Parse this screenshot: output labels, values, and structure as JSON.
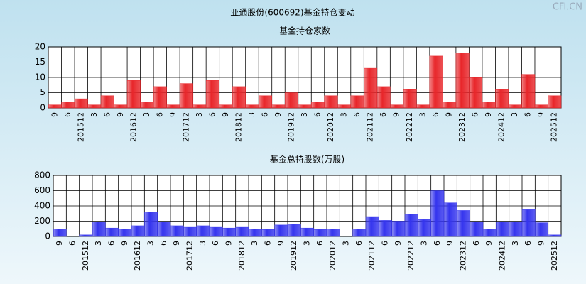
{
  "title": "亚通股份(600692)基金持仓变动",
  "watermark": "CFi.CN",
  "chart_data": [
    {
      "type": "bar",
      "title": "基金持仓家数",
      "categories": [
        "9",
        "6",
        "201512",
        "3",
        "6",
        "9",
        "201612",
        "3",
        "6",
        "9",
        "201712",
        "3",
        "6",
        "9",
        "201812",
        "3",
        "6",
        "9",
        "201912",
        "3",
        "6",
        "202012",
        "3",
        "6",
        "202112",
        "6",
        "9",
        "202212",
        "3",
        "6",
        "9",
        "202312",
        "6",
        "9",
        "202412",
        "3",
        "6",
        "9",
        "202512"
      ],
      "values": [
        1,
        2,
        3,
        1,
        4,
        1,
        9,
        2,
        7,
        1,
        8,
        1,
        9,
        1,
        7,
        1,
        4,
        1,
        5,
        1,
        2,
        4,
        1,
        4,
        13,
        7,
        1,
        6,
        1,
        17,
        2,
        18,
        10,
        2,
        6,
        1,
        11,
        1,
        4
      ],
      "color": "#e8262a",
      "ylim": [
        0,
        20
      ],
      "yticks": [
        0,
        5,
        10,
        15,
        20
      ],
      "grid": true
    },
    {
      "type": "bar",
      "title": "基金总持股数(万股)",
      "categories": [
        "9",
        "6",
        "201512",
        "3",
        "6",
        "9",
        "201612",
        "3",
        "6",
        "9",
        "201712",
        "3",
        "6",
        "9",
        "201812",
        "3",
        "6",
        "9",
        "201912",
        "3",
        "6",
        "202012",
        "3",
        "6",
        "202112",
        "6",
        "9",
        "202212",
        "3",
        "6",
        "9",
        "202312",
        "6",
        "9",
        "202412",
        "3",
        "6",
        "9",
        "202512"
      ],
      "values": [
        100,
        0,
        20,
        190,
        110,
        100,
        140,
        320,
        190,
        140,
        120,
        140,
        120,
        110,
        120,
        100,
        90,
        150,
        160,
        110,
        90,
        100,
        0,
        100,
        260,
        210,
        200,
        290,
        220,
        600,
        440,
        340,
        190,
        100,
        190,
        190,
        350,
        180,
        20
      ],
      "color": "#3434ee",
      "ylim": [
        0,
        800
      ],
      "yticks": [
        0,
        200,
        400,
        600,
        800
      ],
      "grid": true
    }
  ]
}
